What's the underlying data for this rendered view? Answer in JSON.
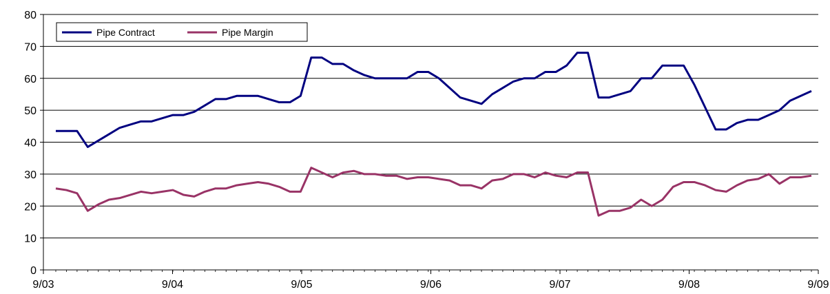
{
  "chart_data": {
    "type": "line",
    "title": "",
    "xlabel": "",
    "ylabel": "",
    "ylim": [
      0,
      80
    ],
    "yticks": [
      "0",
      "10",
      "20",
      "30",
      "40",
      "50",
      "60",
      "70",
      "80"
    ],
    "x_start": "9/03",
    "x_end": "9/09",
    "xticks": [
      "9/03",
      "9/04",
      "9/05",
      "9/06",
      "9/07",
      "9/08",
      "9/09"
    ],
    "x_step": "1 month",
    "grid": "horizontal",
    "legend_position": "top-left",
    "series": [
      {
        "name": "Pipe Contract",
        "color": "#000080",
        "values": [
          43.5,
          43.5,
          43.5,
          38.5,
          40.5,
          42.5,
          44.5,
          45.5,
          46.5,
          46.5,
          47.5,
          48.5,
          48.5,
          49.5,
          51.5,
          53.5,
          53.5,
          54.5,
          54.5,
          54.5,
          53.5,
          52.5,
          52.5,
          54.5,
          66.5,
          66.5,
          64.5,
          64.5,
          62.5,
          61,
          60,
          60,
          60,
          60,
          62,
          62,
          60,
          57,
          54,
          53,
          52,
          55,
          57,
          59,
          60,
          60,
          62,
          62,
          64,
          68,
          68,
          54,
          54,
          55,
          56,
          60,
          60,
          64,
          64,
          64,
          58,
          51,
          44,
          44,
          46,
          47,
          47,
          48.5,
          50,
          53,
          54.5,
          56
        ]
      },
      {
        "name": "Pipe Margin",
        "color": "#993366",
        "values": [
          25.5,
          25,
          24,
          18.5,
          20.5,
          22,
          22.5,
          23.5,
          24.5,
          24,
          24.5,
          25,
          23.5,
          23,
          24.5,
          25.5,
          25.5,
          26.5,
          27,
          27.5,
          27,
          26,
          24.5,
          24.5,
          32,
          30.5,
          29,
          30.5,
          31,
          30,
          30,
          29.5,
          29.5,
          28.5,
          29,
          29,
          28.5,
          28,
          26.5,
          26.5,
          25.5,
          28,
          28.5,
          30,
          30,
          29,
          30.5,
          29.5,
          29,
          30.5,
          30.5,
          17,
          18.5,
          18.5,
          19.5,
          22,
          20,
          22,
          26,
          27.5,
          27.5,
          26.5,
          25,
          24.5,
          26.5,
          28,
          28.5,
          30,
          27,
          29,
          29,
          29.5
        ]
      }
    ]
  }
}
